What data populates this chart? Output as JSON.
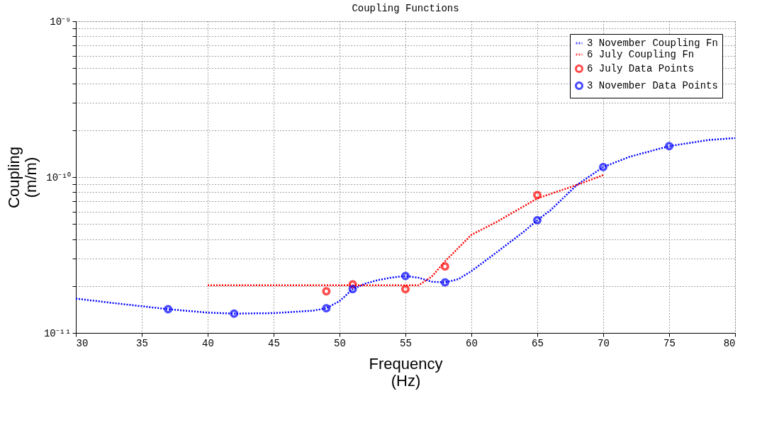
{
  "chart_data": {
    "type": "line",
    "title": "Coupling Functions",
    "xlabel": "Frequency\n(Hz)",
    "ylabel": "Coupling\n(m/m)",
    "log": "y",
    "grid": true,
    "legend": "top right",
    "xlim": [
      30,
      80
    ],
    "xticks": [
      30,
      35,
      40,
      45,
      50,
      55,
      60,
      65,
      70,
      75,
      80
    ],
    "ylim": [
      1e-11,
      1e-09
    ],
    "yticks": [
      {
        "value": 1e-11,
        "label": "10⁻¹¹"
      },
      {
        "value": 2e-11,
        "label": null
      },
      {
        "value": 3e-11,
        "label": null
      },
      {
        "value": 4e-11,
        "label": null
      },
      {
        "value": 5e-11,
        "label": null
      },
      {
        "value": 6e-11,
        "label": null
      },
      {
        "value": 7e-11,
        "label": null
      },
      {
        "value": 8e-11,
        "label": null
      },
      {
        "value": 9e-11,
        "label": null
      },
      {
        "value": 1e-10,
        "label": "10⁻¹⁰"
      },
      {
        "value": 2e-10,
        "label": null
      },
      {
        "value": 3e-10,
        "label": null
      },
      {
        "value": 4e-10,
        "label": null
      },
      {
        "value": 5e-10,
        "label": null
      },
      {
        "value": 6e-10,
        "label": null
      },
      {
        "value": 7e-10,
        "label": null
      },
      {
        "value": 8e-10,
        "label": null
      },
      {
        "value": 9e-10,
        "label": null
      },
      {
        "value": 1e-09,
        "label": "10⁻⁹"
      }
    ],
    "series": [
      {
        "name": "3 November Coupling Fn",
        "line_style": "dotted",
        "color": "#0000ff",
        "x": [
          30,
          33,
          37,
          40,
          42,
          45,
          48,
          49,
          50,
          51,
          52,
          53,
          54,
          55,
          56,
          57,
          58,
          59,
          60,
          62,
          64,
          65,
          66,
          68,
          70,
          72,
          75,
          78,
          80
        ],
        "values": [
          1.66e-11,
          1.55e-11,
          1.42e-11,
          1.35e-11,
          1.33e-11,
          1.34e-11,
          1.39e-11,
          1.44e-11,
          1.6e-11,
          1.91e-11,
          2.08e-11,
          2.19e-11,
          2.27e-11,
          2.32e-11,
          2.26e-11,
          2.13e-11,
          2.11e-11,
          2.21e-11,
          2.49e-11,
          3.33e-11,
          4.48e-11,
          5.29e-11,
          6.13e-11,
          8.9e-11,
          1.16e-10,
          1.35e-10,
          1.58e-10,
          1.73e-10,
          1.78e-10
        ]
      },
      {
        "name": "6 July Coupling Fn",
        "line_style": "dotted",
        "color": "#ff0000",
        "x": [
          40,
          45,
          50,
          55,
          56,
          57,
          58,
          60,
          62,
          65,
          68,
          70
        ],
        "values": [
          2.02e-11,
          2.02e-11,
          2.02e-11,
          2.02e-11,
          2.02e-11,
          2.3e-11,
          2.88e-11,
          4.26e-11,
          5.2e-11,
          7.3e-11,
          8.9e-11,
          1.03e-10
        ]
      },
      {
        "name": "6 July Data Points",
        "type": "scatter",
        "marker": "circle",
        "color": "#ff0000",
        "x": [
          49,
          51,
          55,
          58,
          65
        ],
        "values": [
          1.85e-11,
          2.05e-11,
          1.91e-11,
          2.67e-11,
          7.67e-11
        ]
      },
      {
        "name": "3 November Data Points",
        "type": "scatter",
        "marker": "circle",
        "color": "#0000ff",
        "x": [
          37,
          42,
          49,
          51,
          55,
          58,
          65,
          70,
          75
        ],
        "values": [
          1.42e-11,
          1.33e-11,
          1.44e-11,
          1.91e-11,
          2.32e-11,
          2.11e-11,
          5.29e-11,
          1.16e-10,
          1.58e-10
        ]
      }
    ]
  }
}
